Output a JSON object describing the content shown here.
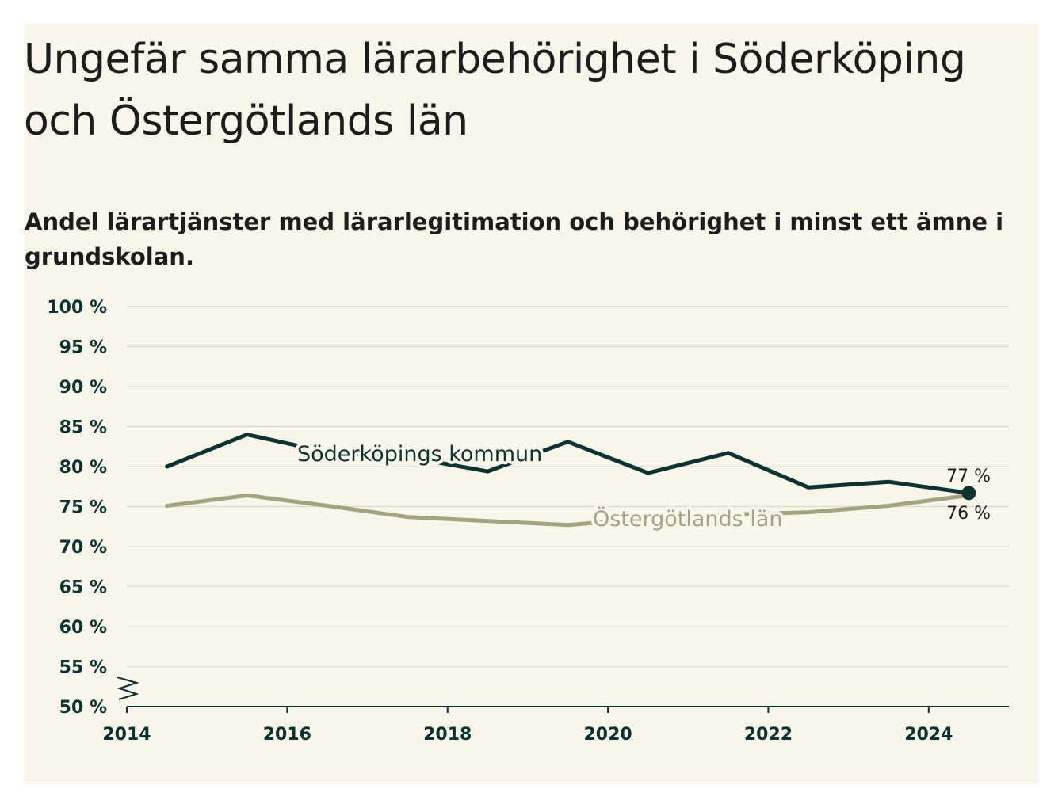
{
  "header": {
    "title": "Ungefär samma lärarbehörighet i Söderköping och Östergötlands län",
    "subtitle": "Andel lärartjänster med lärarlegitimation och behörighet i minst ett ämne i grundskolan."
  },
  "colors": {
    "background": "#f8f6ea",
    "kommun": "#0c3330",
    "lan": "#a5a27f",
    "grid": "#dcdbd6",
    "axis": "#0c3330"
  },
  "chart_data": {
    "type": "line",
    "title": "Ungefär samma lärarbehörighet i Söderköping och Östergötlands län",
    "subtitle": "Andel lärartjänster med lärarlegitimation och behörighet i minst ett ämne i grundskolan.",
    "xlabel": "",
    "ylabel": "",
    "xlim": [
      2014,
      2025
    ],
    "ylim": [
      50,
      100
    ],
    "y_broken_axis": true,
    "grid": true,
    "legend": "inline labels",
    "x_ticks": [
      "2014",
      "2016",
      "2018",
      "2020",
      "2022",
      "2024"
    ],
    "y_ticks": [
      "50 %",
      "55 %",
      "60 %",
      "65 %",
      "70 %",
      "75 %",
      "80 %",
      "85 %",
      "90 %",
      "95 %",
      "100 %"
    ],
    "x": [
      2014.5,
      2015.5,
      2016.5,
      2017.5,
      2018.5,
      2019.5,
      2020.5,
      2021.5,
      2022.5,
      2023.5,
      2024.5
    ],
    "series": [
      {
        "name": "Söderköpings kommun",
        "color": "#0c3330",
        "values": [
          80.0,
          84.0,
          81.8,
          81.2,
          79.4,
          83.1,
          79.2,
          81.7,
          77.4,
          78.1,
          76.7
        ],
        "end_label": "77 %"
      },
      {
        "name": "Östergötlands län",
        "color": "#a5a27f",
        "values": [
          75.1,
          76.4,
          75.1,
          73.7,
          73.2,
          72.7,
          73.5,
          74.0,
          74.3,
          75.1,
          76.4
        ],
        "end_label": "76 %"
      }
    ]
  }
}
